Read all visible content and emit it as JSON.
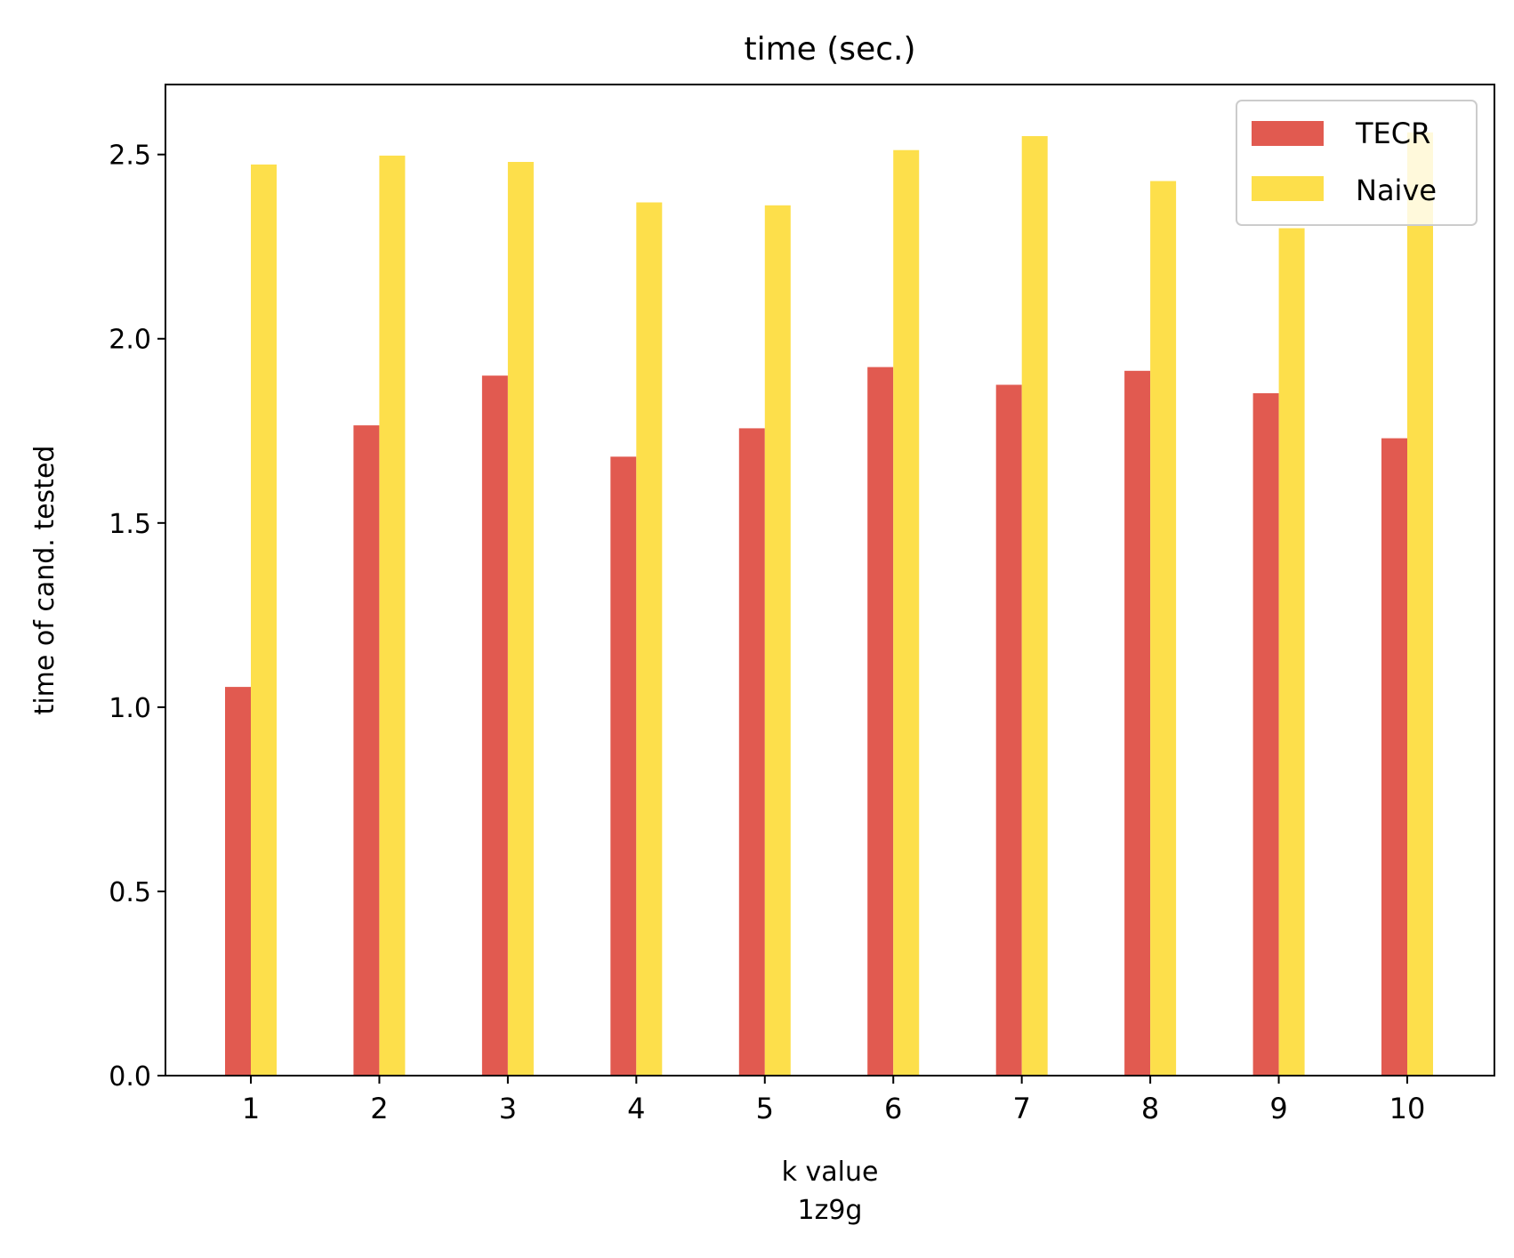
{
  "chart_data": {
    "type": "bar",
    "title": "time (sec.)",
    "xlabel": "k value",
    "xlabel_sub": "1z9g",
    "ylabel": "time of cand. tested",
    "categories": [
      "1",
      "2",
      "3",
      "4",
      "5",
      "6",
      "7",
      "8",
      "9",
      "10"
    ],
    "series": [
      {
        "name": "TECR",
        "color": "#e15a50",
        "values": [
          1.055,
          1.765,
          1.9,
          1.68,
          1.757,
          1.923,
          1.875,
          1.913,
          1.852,
          1.73
        ]
      },
      {
        "name": "Naive",
        "color": "#fddf4b",
        "values": [
          2.473,
          2.497,
          2.48,
          2.37,
          2.362,
          2.512,
          2.55,
          2.428,
          2.3,
          2.56
        ]
      }
    ],
    "ylim": [
      0,
      2.69
    ],
    "yticks": [
      "0.0",
      "0.5",
      "1.0",
      "1.5",
      "2.0",
      "2.5"
    ],
    "ytick_values": [
      0,
      0.5,
      1.0,
      1.5,
      2.0,
      2.5
    ],
    "grid": false,
    "legend_position": "top-right"
  }
}
